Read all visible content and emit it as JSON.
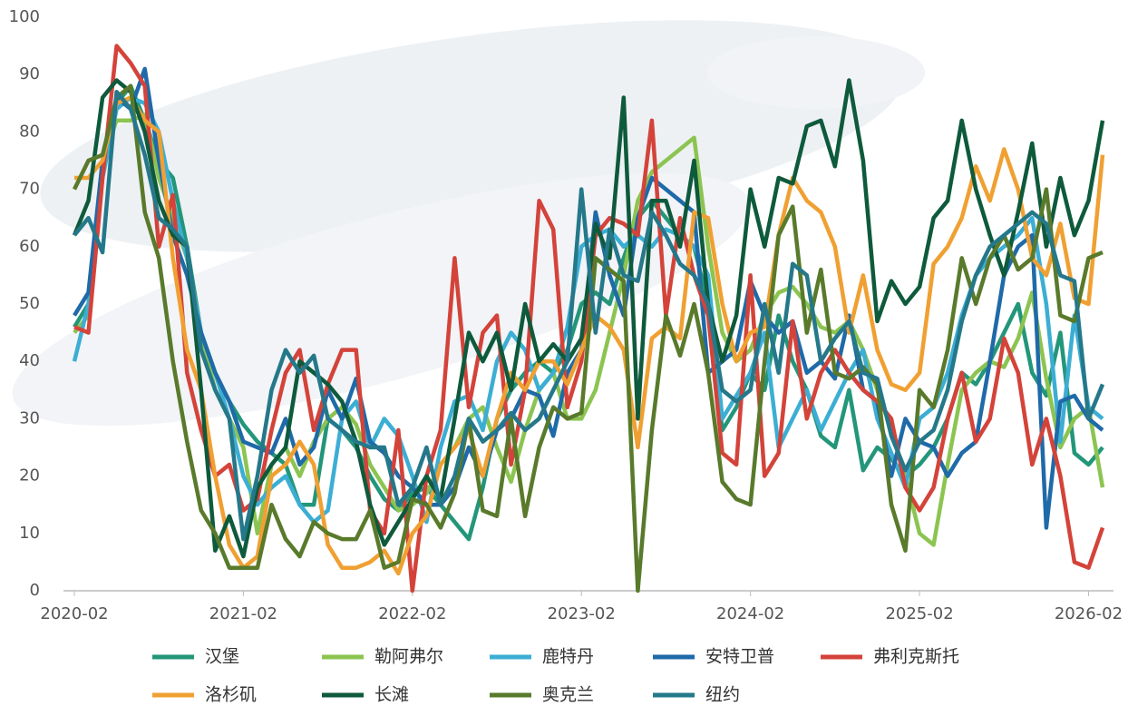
{
  "chart_data": {
    "type": "line",
    "x": [
      "2020-02",
      "2020-03",
      "2020-04",
      "2020-05",
      "2020-06",
      "2020-07",
      "2020-08",
      "2020-09",
      "2020-10",
      "2020-11",
      "2020-12",
      "2021-01",
      "2021-02",
      "2021-03",
      "2021-04",
      "2021-05",
      "2021-06",
      "2021-07",
      "2021-08",
      "2021-09",
      "2021-10",
      "2021-11",
      "2021-12",
      "2022-01",
      "2022-02",
      "2022-03",
      "2022-04",
      "2022-05",
      "2022-06",
      "2022-07",
      "2022-08",
      "2022-09",
      "2022-10",
      "2022-11",
      "2022-12",
      "2023-01",
      "2023-02",
      "2023-03",
      "2023-04",
      "2023-05",
      "2023-06",
      "2023-07",
      "2023-08",
      "2023-09",
      "2023-10",
      "2023-11",
      "2023-12",
      "2024-01",
      "2024-02",
      "2024-03",
      "2024-04",
      "2024-05",
      "2024-06",
      "2024-07",
      "2024-08",
      "2024-09",
      "2024-10",
      "2024-11",
      "2024-12",
      "2025-01",
      "2025-02",
      "2025-03",
      "2025-04",
      "2025-05",
      "2025-06",
      "2025-07",
      "2025-08",
      "2025-09",
      "2025-10",
      "2025-11",
      "2025-12",
      "2026-01",
      "2026-02",
      "2026-03"
    ],
    "xticks": [
      "2020-02",
      "2021-02",
      "2022-02",
      "2023-02",
      "2024-02",
      "2025-02",
      "2026-02"
    ],
    "ylim": [
      0,
      100
    ],
    "yticks": [
      0,
      10,
      20,
      30,
      40,
      50,
      60,
      70,
      80,
      90,
      100
    ],
    "grid": false,
    "legend": "bottom",
    "series": [
      {
        "name": "汉堡",
        "color": "#23967a",
        "values": [
          46,
          50,
          75,
          85,
          88,
          82,
          75,
          72,
          60,
          45,
          38,
          33,
          29,
          26,
          24,
          22,
          15,
          15,
          30,
          28,
          25,
          20,
          16,
          14,
          17,
          18,
          15,
          12,
          9,
          18,
          30,
          35,
          38,
          40,
          38,
          42,
          50,
          52,
          50,
          58,
          65,
          68,
          65,
          62,
          60,
          50,
          28,
          32,
          38,
          35,
          48,
          40,
          35,
          27,
          25,
          35,
          21,
          25,
          23,
          20,
          22,
          25,
          30,
          38,
          36,
          40,
          45,
          50,
          38,
          34,
          45,
          24,
          22,
          25
        ]
      },
      {
        "name": "勒阿弗尔",
        "color": "#8cc451",
        "values": [
          45,
          48,
          75,
          82,
          82,
          83,
          72,
          65,
          58,
          45,
          35,
          30,
          25,
          10,
          22,
          25,
          20,
          26,
          30,
          32,
          29,
          22,
          18,
          14,
          15,
          17,
          22,
          25,
          30,
          32,
          25,
          19,
          28,
          35,
          38,
          30,
          30,
          35,
          45,
          55,
          68,
          73,
          75,
          77,
          79,
          60,
          45,
          40,
          42,
          48,
          52,
          53,
          50,
          46,
          45,
          47,
          42,
          35,
          28,
          20,
          10,
          8,
          22,
          35,
          38,
          40,
          39,
          44,
          52,
          37,
          25,
          30,
          32,
          18
        ]
      },
      {
        "name": "鹿特丹",
        "color": "#3caed4",
        "values": [
          40,
          50,
          72,
          84,
          86,
          85,
          80,
          68,
          58,
          45,
          38,
          30,
          20,
          15,
          18,
          20,
          15,
          12,
          14,
          30,
          33,
          25,
          30,
          27,
          20,
          12,
          25,
          33,
          34,
          28,
          40,
          45,
          42,
          35,
          38,
          46,
          60,
          62,
          63,
          60,
          62,
          60,
          63,
          62,
          60,
          55,
          30,
          34,
          38,
          45,
          25,
          30,
          35,
          28,
          33,
          38,
          42,
          30,
          24,
          18,
          30,
          32,
          38,
          48,
          55,
          58,
          60,
          62,
          65,
          50,
          26,
          48,
          32,
          30
        ]
      },
      {
        "name": "安特卫普",
        "color": "#1f6aa8",
        "values": [
          48,
          52,
          75,
          86,
          84,
          91,
          75,
          62,
          55,
          45,
          38,
          33,
          26,
          25,
          24,
          30,
          22,
          25,
          35,
          30,
          37,
          26,
          24,
          20,
          18,
          15,
          15,
          18,
          25,
          20,
          28,
          30,
          35,
          34,
          27,
          38,
          42,
          66,
          55,
          48,
          65,
          72,
          70,
          68,
          66,
          38,
          40,
          42,
          54,
          48,
          45,
          47,
          38,
          40,
          37,
          48,
          35,
          33,
          20,
          30,
          26,
          25,
          20,
          24,
          26,
          40,
          55,
          60,
          62,
          11,
          33,
          34,
          30,
          28
        ]
      },
      {
        "name": "弗利克斯托",
        "color": "#d4433a",
        "values": [
          46,
          45,
          72,
          95,
          92,
          88,
          60,
          69,
          38,
          28,
          20,
          22,
          14,
          16,
          28,
          38,
          42,
          28,
          36,
          42,
          42,
          14,
          10,
          28,
          0,
          20,
          28,
          58,
          32,
          45,
          48,
          22,
          35,
          68,
          63,
          32,
          40,
          62,
          65,
          64,
          62,
          82,
          48,
          65,
          55,
          48,
          24,
          22,
          55,
          20,
          24,
          47,
          30,
          38,
          42,
          38,
          35,
          33,
          30,
          18,
          14,
          18,
          30,
          38,
          26,
          30,
          44,
          38,
          22,
          30,
          20,
          5,
          4,
          11
        ]
      },
      {
        "name": "洛杉矶",
        "color": "#f0a032",
        "values": [
          72,
          72,
          75,
          85,
          86,
          82,
          80,
          58,
          42,
          35,
          20,
          8,
          4,
          6,
          20,
          22,
          26,
          22,
          8,
          4,
          4,
          5,
          7,
          3,
          10,
          13,
          22,
          25,
          28,
          20,
          30,
          38,
          35,
          40,
          40,
          36,
          42,
          48,
          46,
          42,
          25,
          44,
          46,
          44,
          66,
          65,
          50,
          40,
          45,
          46,
          62,
          72,
          68,
          66,
          60,
          45,
          55,
          42,
          36,
          35,
          38,
          57,
          60,
          65,
          74,
          68,
          77,
          70,
          58,
          55,
          64,
          51,
          50,
          76
        ]
      },
      {
        "name": "长滩",
        "color": "#0e5a3c",
        "values": [
          62,
          68,
          86,
          89,
          87,
          80,
          68,
          62,
          60,
          35,
          7,
          13,
          6,
          18,
          22,
          25,
          40,
          38,
          36,
          33,
          26,
          15,
          8,
          12,
          16,
          20,
          16,
          30,
          45,
          40,
          45,
          35,
          50,
          40,
          43,
          40,
          44,
          64,
          58,
          86,
          30,
          68,
          68,
          60,
          75,
          50,
          40,
          48,
          70,
          60,
          72,
          71,
          81,
          82,
          74,
          89,
          75,
          47,
          54,
          50,
          53,
          65,
          68,
          82,
          70,
          62,
          55,
          66,
          78,
          60,
          72,
          62,
          68,
          82
        ]
      },
      {
        "name": "奥克兰",
        "color": "#597a2b",
        "values": [
          70,
          75,
          76,
          86,
          88,
          66,
          58,
          40,
          26,
          14,
          10,
          4,
          4,
          4,
          15,
          9,
          6,
          12,
          10,
          9,
          9,
          14,
          4,
          5,
          16,
          15,
          11,
          17,
          30,
          14,
          13,
          30,
          13,
          25,
          32,
          30,
          31,
          58,
          56,
          54,
          0,
          28,
          48,
          41,
          50,
          38,
          19,
          16,
          15,
          40,
          62,
          67,
          45,
          56,
          38,
          37,
          39,
          36,
          15,
          7,
          35,
          32,
          42,
          58,
          50,
          58,
          62,
          56,
          58,
          70,
          48,
          47,
          58,
          59
        ]
      },
      {
        "name": "纽约",
        "color": "#25788a",
        "values": [
          62,
          65,
          59,
          87,
          84,
          76,
          65,
          63,
          60,
          42,
          35,
          30,
          9,
          20,
          35,
          42,
          38,
          41,
          30,
          28,
          26,
          25,
          25,
          15,
          18,
          25,
          15,
          20,
          30,
          26,
          28,
          31,
          28,
          30,
          35,
          40,
          70,
          45,
          63,
          55,
          54,
          66,
          62,
          57,
          55,
          50,
          35,
          33,
          35,
          50,
          38,
          57,
          55,
          40,
          44,
          47,
          38,
          37,
          27,
          21,
          26,
          28,
          35,
          47,
          55,
          60,
          62,
          64,
          66,
          64,
          55,
          54,
          30,
          36
        ]
      }
    ]
  }
}
